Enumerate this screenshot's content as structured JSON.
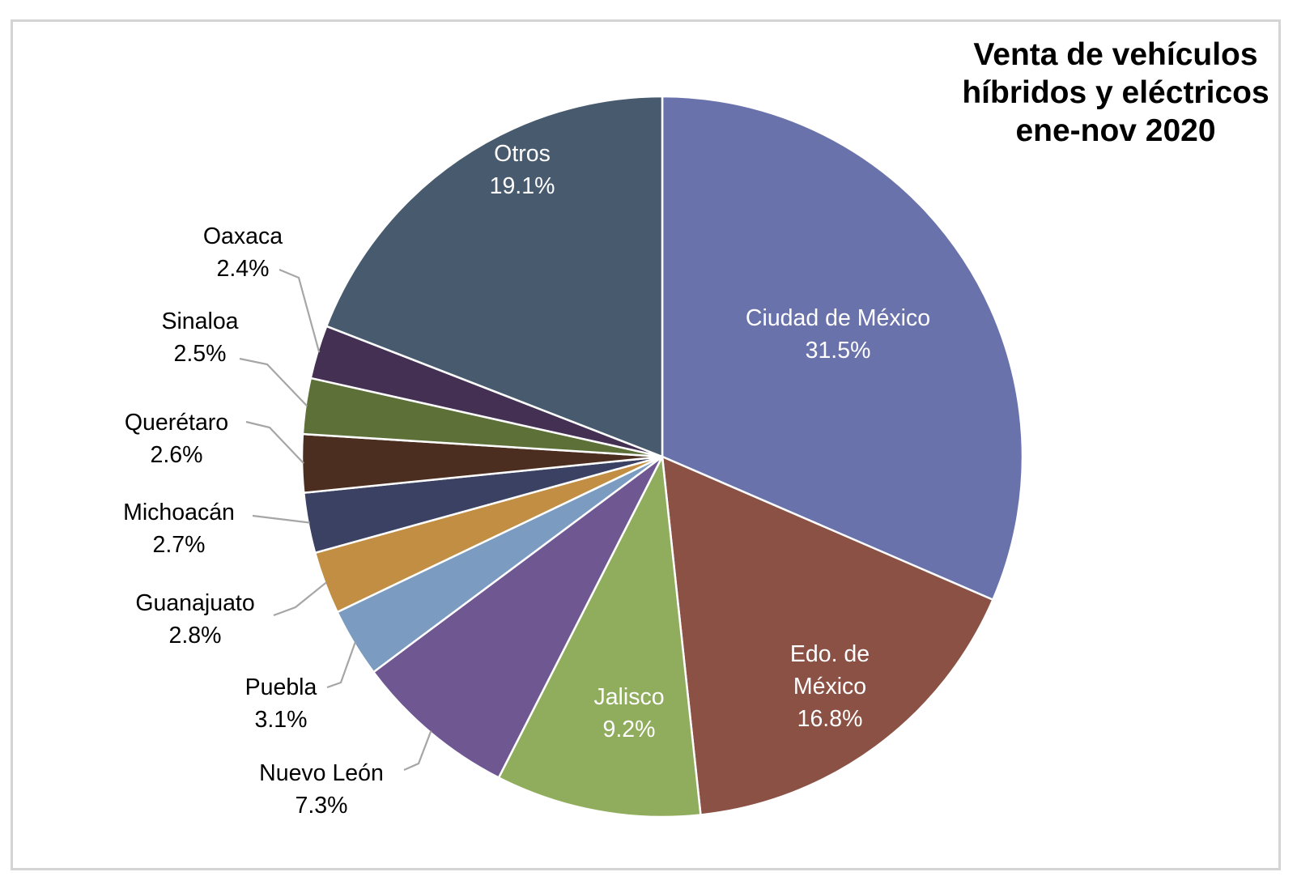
{
  "title": {
    "lines": [
      "Venta de vehículos",
      "híbridos y eléctricos",
      "ene-nov 2020"
    ],
    "text": "Venta de vehículos híbridos y eléctricos ene-nov 2020"
  },
  "colors": {
    "panel_border": "#D4D4D4",
    "leader_line": "#A6A6A6",
    "slice_border": "#FFFFFF",
    "title_text": "#000000"
  },
  "chart_data": {
    "type": "pie",
    "title": "Venta de vehículos híbridos y eléctricos ene-nov 2020",
    "unit": "%",
    "start_angle_deg": 0,
    "direction": "clockwise",
    "legend": "none",
    "slice_border_color": "#FFFFFF",
    "leader_line_color": "#A6A6A6",
    "slices": [
      {
        "name": "Ciudad de México",
        "value": 31.5,
        "pct_label": "31.5%",
        "color": "#6A72AC",
        "label_position": "inside",
        "label_color": "#FFFFFF",
        "label_lines": [
          "Ciudad de México",
          "31.5%"
        ]
      },
      {
        "name": "Edo. de México",
        "value": 16.8,
        "pct_label": "16.8%",
        "color": "#8B5144",
        "label_position": "inside",
        "label_color": "#FFFFFF",
        "label_lines": [
          "Edo. de",
          "México",
          "16.8%"
        ]
      },
      {
        "name": "Jalisco",
        "value": 9.2,
        "pct_label": "9.2%",
        "color": "#90AC5D",
        "label_position": "inside",
        "label_color": "#FFFFFF",
        "label_lines": [
          "Jalisco",
          "9.2%"
        ]
      },
      {
        "name": "Nuevo León",
        "value": 7.3,
        "pct_label": "7.3%",
        "color": "#6F5792",
        "label_position": "outside",
        "label_color": "#000000",
        "label_lines": [
          "Nuevo León",
          "7.3%"
        ]
      },
      {
        "name": "Puebla",
        "value": 3.1,
        "pct_label": "3.1%",
        "color": "#7B9BC0",
        "label_position": "outside",
        "label_color": "#000000",
        "label_lines": [
          "Puebla",
          "3.1%"
        ]
      },
      {
        "name": "Guanajuato",
        "value": 2.8,
        "pct_label": "2.8%",
        "color": "#C28E43",
        "label_position": "outside",
        "label_color": "#000000",
        "label_lines": [
          "Guanajuato",
          "2.8%"
        ]
      },
      {
        "name": "Michoacán",
        "value": 2.7,
        "pct_label": "2.7%",
        "color": "#3A4162",
        "label_position": "outside",
        "label_color": "#000000",
        "label_lines": [
          "Michoacán",
          "2.7%"
        ]
      },
      {
        "name": "Querétaro",
        "value": 2.6,
        "pct_label": "2.6%",
        "color": "#4C2E21",
        "label_position": "outside",
        "label_color": "#000000",
        "label_lines": [
          "Querétaro",
          "2.6%"
        ]
      },
      {
        "name": "Sinaloa",
        "value": 2.5,
        "pct_label": "2.5%",
        "color": "#5C7038",
        "label_position": "outside",
        "label_color": "#000000",
        "label_lines": [
          "Sinaloa",
          "2.5%"
        ]
      },
      {
        "name": "Oaxaca",
        "value": 2.4,
        "pct_label": "2.4%",
        "color": "#443053",
        "label_position": "outside",
        "label_color": "#000000",
        "label_lines": [
          "Oaxaca",
          "2.4%"
        ]
      },
      {
        "name": "Otros",
        "value": 19.1,
        "pct_label": "19.1%",
        "color": "#485A6E",
        "label_position": "inside",
        "label_color": "#FFFFFF",
        "label_lines": [
          "Otros",
          "19.1%"
        ]
      }
    ]
  }
}
